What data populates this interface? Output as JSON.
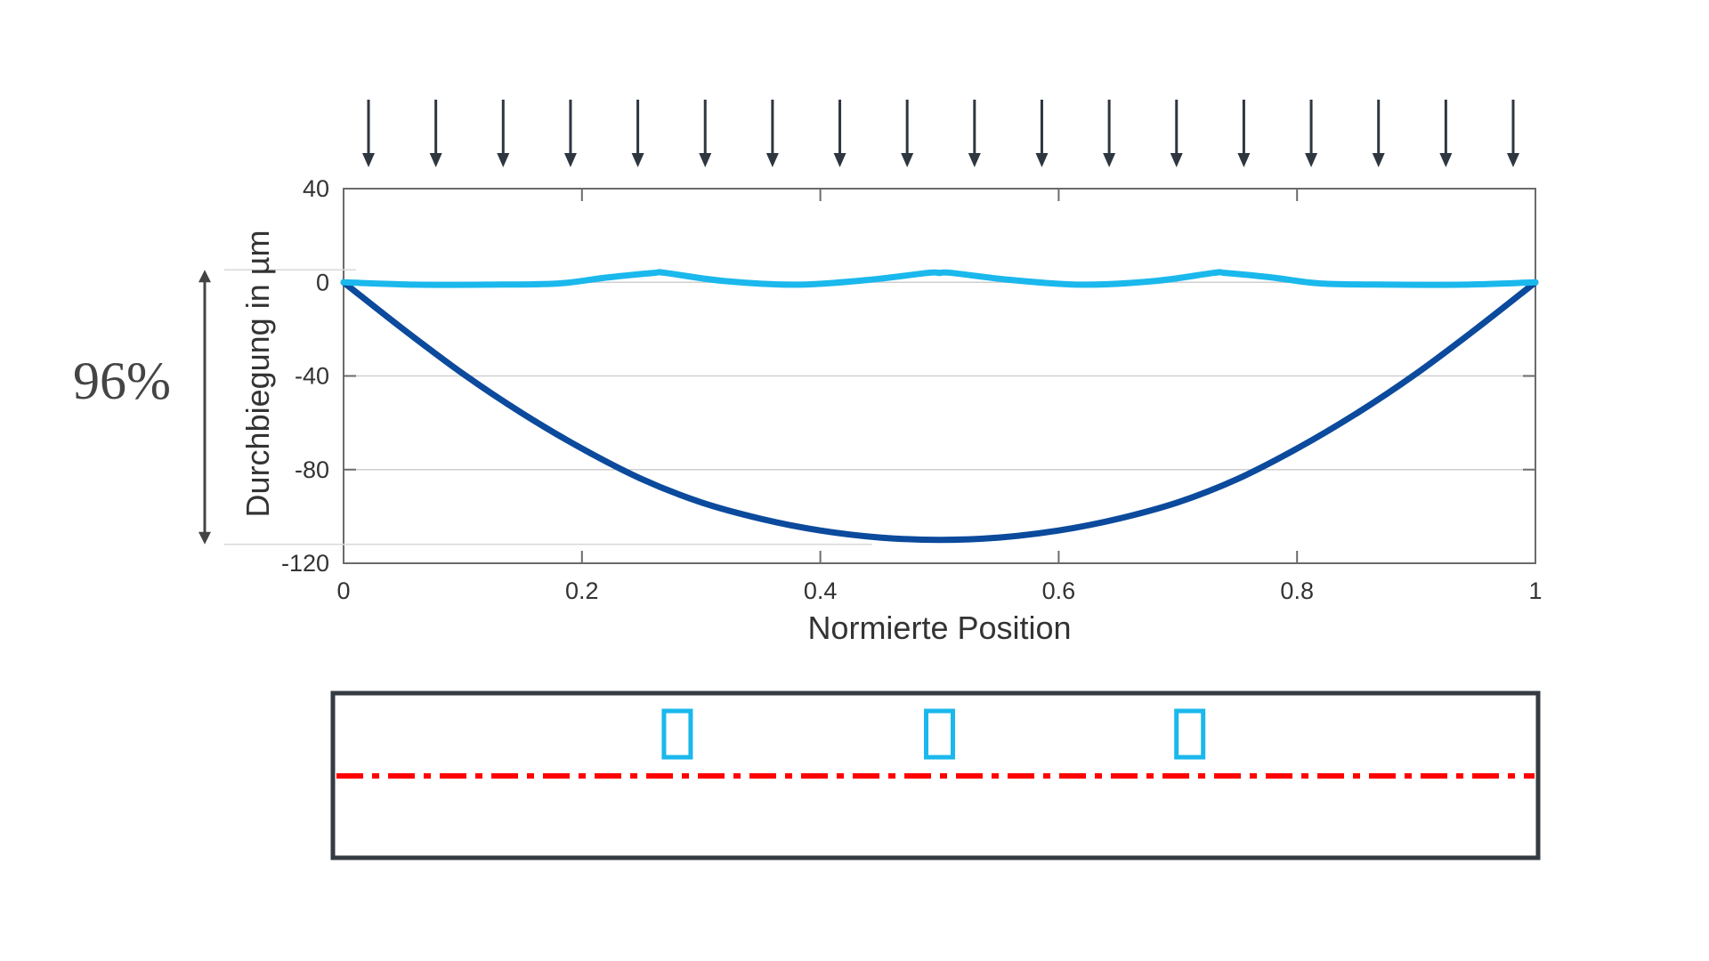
{
  "chart_data": {
    "type": "line",
    "title": "",
    "xlabel": "Normierte Position",
    "ylabel": "Durchbiegung in µm",
    "xlim": [
      0,
      1
    ],
    "ylim": [
      -120,
      40
    ],
    "x_ticks": [
      "0",
      "0.2",
      "0.4",
      "0.6",
      "0.8",
      "1"
    ],
    "y_ticks": [
      "40",
      "0",
      "-40",
      "-80",
      "-120"
    ],
    "grid": "horizontal",
    "legend": "none",
    "series": [
      {
        "color": "#0b4a9c",
        "x": [
          0,
          0.05,
          0.1,
          0.15,
          0.2,
          0.25,
          0.3,
          0.35,
          0.4,
          0.45,
          0.5,
          0.55,
          0.6,
          0.65,
          0.7,
          0.75,
          0.8,
          0.85,
          0.9,
          0.95,
          1
        ],
        "y": [
          0,
          -20,
          -39,
          -56,
          -71,
          -84,
          -94,
          -101,
          -106,
          -109,
          -110,
          -109,
          -106,
          -101,
          -94,
          -84,
          -71,
          -56,
          -39,
          -20,
          0
        ]
      },
      {
        "color": "#1ab8ec",
        "x": [
          0,
          0.06,
          0.12,
          0.18,
          0.22,
          0.26,
          0.27,
          0.32,
          0.38,
          0.44,
          0.49,
          0.5,
          0.51,
          0.56,
          0.62,
          0.68,
          0.73,
          0.74,
          0.78,
          0.82,
          0.88,
          0.94,
          1
        ],
        "y": [
          0,
          -1,
          -1,
          -0.5,
          2,
          4,
          4,
          0.5,
          -1,
          1,
          4,
          4,
          4,
          1,
          -1,
          0.5,
          4,
          4,
          2,
          -0.5,
          -1,
          -1,
          0
        ]
      }
    ],
    "annotation": {
      "label": "96%",
      "from_y": 0,
      "to_y": -110
    },
    "load_arrows": {
      "count": 18,
      "color": "#2e3640"
    }
  },
  "beam_diagram": {
    "frame_color": "#353b42",
    "centerline_color": "#ff0000",
    "support_color": "#1ab8ec",
    "support_positions": [
      0.28,
      0.5,
      0.71
    ]
  }
}
